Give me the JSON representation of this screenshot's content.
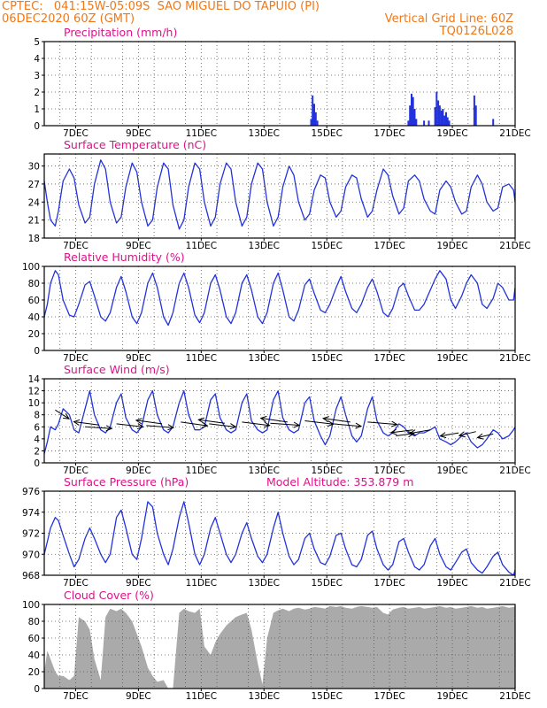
{
  "header": {
    "line1": "CPTEC:   041:15W-05:09S  SAO MIGUEL DO TAPUIO (PI)",
    "line2_left": "06DEC2020 60Z (GMT)",
    "line2_right": "Vertical Grid Line: 60Z",
    "line3_right": "TQ0126L028"
  },
  "model_altitude": "Model Altitude: 353.879 m",
  "colors": {
    "header": "#f07818",
    "title": "#e0108a",
    "series": "#2233dd",
    "cloud": "#aaaaaa",
    "arrow": "#000000"
  },
  "x_ticks": [
    "7DEC",
    "9DEC",
    "11DEC",
    "13DEC",
    "15DEC",
    "17DEC",
    "19DEC",
    "21DEC"
  ],
  "chart_data": [
    {
      "type": "bar",
      "title": "Precipitation (mm/h)",
      "ylim": [
        0,
        5
      ],
      "yticks": [
        "0",
        "1",
        "2",
        "3",
        "4",
        "5"
      ],
      "xlim": [
        6.0,
        21.0
      ],
      "x": [
        14.5,
        14.55,
        14.6,
        14.65,
        14.7,
        17.6,
        17.65,
        17.7,
        17.75,
        17.8,
        17.85,
        18.1,
        18.25,
        18.45,
        18.5,
        18.55,
        18.6,
        18.65,
        18.7,
        18.75,
        18.8,
        18.85,
        18.9,
        19.7,
        19.75,
        20.3
      ],
      "values": [
        0.4,
        1.8,
        1.3,
        0.8,
        0.3,
        0.3,
        1.2,
        1.9,
        1.7,
        1.0,
        0.4,
        0.3,
        0.3,
        1.1,
        2.0,
        1.5,
        1.2,
        0.9,
        1.0,
        0.6,
        0.8,
        0.5,
        0.3,
        1.8,
        1.2,
        0.4
      ]
    },
    {
      "type": "line",
      "title": "Surface Temperature (nC)",
      "ylim": [
        18,
        32
      ],
      "yticks": [
        "18",
        "21",
        "24",
        "27",
        "30"
      ],
      "xlim": [
        6.0,
        21.0
      ],
      "x": [
        6.0,
        6.1,
        6.2,
        6.35,
        6.45,
        6.6,
        6.8,
        6.95,
        7.1,
        7.3,
        7.45,
        7.6,
        7.8,
        7.95,
        8.1,
        8.3,
        8.45,
        8.6,
        8.8,
        8.95,
        9.1,
        9.3,
        9.45,
        9.6,
        9.8,
        9.95,
        10.1,
        10.3,
        10.45,
        10.6,
        10.8,
        10.95,
        11.1,
        11.3,
        11.45,
        11.6,
        11.8,
        11.95,
        12.1,
        12.3,
        12.45,
        12.6,
        12.8,
        12.95,
        13.1,
        13.3,
        13.45,
        13.6,
        13.8,
        13.95,
        14.1,
        14.3,
        14.45,
        14.6,
        14.8,
        14.95,
        15.1,
        15.3,
        15.45,
        15.6,
        15.8,
        15.95,
        16.1,
        16.3,
        16.45,
        16.6,
        16.8,
        16.95,
        17.1,
        17.3,
        17.45,
        17.6,
        17.8,
        17.95,
        18.1,
        18.3,
        18.45,
        18.6,
        18.8,
        18.95,
        19.1,
        19.3,
        19.45,
        19.6,
        19.8,
        19.95,
        20.1,
        20.3,
        20.45,
        20.6,
        20.8,
        20.95,
        21.0
      ],
      "values": [
        27.5,
        24.0,
        21.0,
        20.0,
        22.5,
        27.5,
        29.5,
        28.0,
        23.5,
        20.5,
        21.5,
        27.0,
        31.0,
        29.5,
        24.0,
        20.5,
        21.5,
        26.5,
        30.5,
        29.0,
        24.0,
        20.0,
        21.0,
        26.5,
        30.5,
        29.5,
        23.5,
        19.5,
        21.0,
        26.5,
        30.5,
        29.5,
        24.0,
        20.0,
        21.5,
        27.0,
        30.5,
        29.5,
        24.0,
        20.0,
        21.5,
        27.0,
        30.5,
        29.5,
        24.0,
        20.0,
        21.5,
        26.5,
        30.0,
        28.5,
        24.0,
        21.0,
        22.0,
        26.0,
        28.5,
        28.0,
        24.0,
        21.5,
        22.5,
        26.5,
        28.5,
        28.0,
        24.5,
        21.5,
        22.5,
        26.0,
        29.5,
        28.5,
        25.0,
        22.0,
        23.0,
        27.5,
        28.5,
        27.5,
        24.5,
        22.5,
        22.0,
        26.0,
        27.5,
        26.5,
        24.0,
        22.0,
        22.5,
        26.5,
        28.5,
        27.0,
        24.0,
        22.5,
        23.0,
        26.5,
        27.0,
        26.0,
        24.0
      ]
    },
    {
      "type": "line",
      "title": "Relative Humidity (%)",
      "ylim": [
        0,
        100
      ],
      "yticks": [
        "0",
        "20",
        "40",
        "60",
        "80",
        "100"
      ],
      "xlim": [
        6.0,
        21.0
      ],
      "x": [
        6.0,
        6.1,
        6.2,
        6.35,
        6.45,
        6.6,
        6.8,
        6.95,
        7.1,
        7.3,
        7.45,
        7.6,
        7.8,
        7.95,
        8.1,
        8.3,
        8.45,
        8.6,
        8.8,
        8.95,
        9.1,
        9.3,
        9.45,
        9.6,
        9.8,
        9.95,
        10.1,
        10.3,
        10.45,
        10.6,
        10.8,
        10.95,
        11.1,
        11.3,
        11.45,
        11.6,
        11.8,
        11.95,
        12.1,
        12.3,
        12.45,
        12.6,
        12.8,
        12.95,
        13.1,
        13.3,
        13.45,
        13.6,
        13.8,
        13.95,
        14.1,
        14.3,
        14.45,
        14.6,
        14.8,
        14.95,
        15.1,
        15.3,
        15.45,
        15.6,
        15.8,
        15.95,
        16.1,
        16.3,
        16.45,
        16.6,
        16.8,
        16.95,
        17.1,
        17.3,
        17.45,
        17.6,
        17.8,
        17.95,
        18.1,
        18.3,
        18.45,
        18.6,
        18.8,
        18.95,
        19.1,
        19.3,
        19.45,
        19.6,
        19.8,
        19.95,
        20.1,
        20.3,
        20.45,
        20.6,
        20.8,
        20.95,
        21.0
      ],
      "values": [
        40,
        55,
        80,
        95,
        90,
        60,
        42,
        40,
        55,
        78,
        82,
        65,
        40,
        35,
        45,
        75,
        88,
        70,
        40,
        32,
        45,
        80,
        92,
        75,
        40,
        30,
        45,
        80,
        92,
        75,
        42,
        33,
        45,
        80,
        90,
        72,
        40,
        32,
        45,
        80,
        90,
        72,
        40,
        32,
        45,
        80,
        92,
        72,
        40,
        35,
        48,
        78,
        85,
        68,
        48,
        45,
        55,
        75,
        88,
        70,
        50,
        45,
        55,
        75,
        85,
        70,
        45,
        40,
        50,
        75,
        80,
        65,
        48,
        48,
        55,
        72,
        85,
        95,
        85,
        60,
        50,
        65,
        80,
        90,
        80,
        55,
        50,
        62,
        80,
        75,
        60,
        60,
        75
      ]
    },
    {
      "type": "line",
      "title": "Surface Wind (m/s)",
      "ylim": [
        0,
        14
      ],
      "yticks": [
        "0",
        "2",
        "4",
        "6",
        "8",
        "10",
        "12",
        "14"
      ],
      "xlim": [
        6.0,
        21.0
      ],
      "x": [
        6.0,
        6.1,
        6.2,
        6.35,
        6.45,
        6.6,
        6.8,
        6.95,
        7.1,
        7.3,
        7.45,
        7.6,
        7.8,
        7.95,
        8.1,
        8.3,
        8.45,
        8.6,
        8.8,
        8.95,
        9.1,
        9.3,
        9.45,
        9.6,
        9.8,
        9.95,
        10.1,
        10.3,
        10.45,
        10.6,
        10.8,
        10.95,
        11.1,
        11.3,
        11.45,
        11.6,
        11.8,
        11.95,
        12.1,
        12.3,
        12.45,
        12.6,
        12.8,
        12.95,
        13.1,
        13.3,
        13.45,
        13.6,
        13.8,
        13.95,
        14.1,
        14.3,
        14.45,
        14.6,
        14.8,
        14.95,
        15.1,
        15.3,
        15.45,
        15.6,
        15.8,
        15.95,
        16.1,
        16.3,
        16.45,
        16.6,
        16.8,
        16.95,
        17.1,
        17.3,
        17.45,
        17.6,
        17.8,
        17.95,
        18.1,
        18.3,
        18.45,
        18.6,
        18.8,
        18.95,
        19.1,
        19.3,
        19.45,
        19.6,
        19.8,
        19.95,
        20.1,
        20.3,
        20.45,
        20.6,
        20.8,
        20.95,
        21.0
      ],
      "values": [
        1.5,
        3.5,
        6.0,
        5.5,
        6.5,
        9.0,
        8.0,
        5.5,
        5.0,
        9.0,
        12.0,
        8.0,
        5.5,
        5.0,
        6.0,
        10.0,
        11.5,
        7.5,
        5.5,
        5.0,
        6.0,
        10.5,
        12.0,
        8.0,
        5.5,
        5.0,
        6.0,
        10.0,
        12.0,
        8.0,
        5.5,
        5.5,
        6.0,
        10.5,
        11.5,
        7.5,
        5.5,
        5.0,
        5.5,
        10.0,
        11.5,
        7.0,
        5.5,
        5.0,
        5.5,
        10.5,
        12.0,
        7.5,
        5.5,
        5.0,
        5.5,
        10.0,
        11.0,
        7.0,
        4.5,
        3.0,
        4.5,
        9.0,
        11.0,
        8.0,
        4.5,
        3.5,
        4.5,
        9.0,
        11.0,
        7.0,
        5.0,
        4.5,
        5.0,
        6.5,
        6.0,
        5.0,
        4.5,
        5.0,
        5.0,
        5.5,
        6.0,
        4.0,
        3.5,
        3.0,
        3.5,
        4.5,
        5.0,
        3.5,
        2.5,
        3.0,
        4.0,
        5.5,
        5.0,
        4.0,
        4.5,
        5.5,
        6.0
      ],
      "wind_arrows": {
        "x": [
          6.35,
          7.3,
          7.75,
          8.3,
          9.25,
          9.75,
          10.35,
          11.25,
          11.75,
          12.3,
          13.2,
          13.75,
          14.3,
          15.2,
          15.75,
          16.3,
          17.2,
          17.75,
          18.3,
          19.2,
          19.75,
          20.3
        ],
        "speed": [
          8.8,
          6.0,
          6.3,
          6.5,
          6.2,
          6.5,
          6.8,
          6.5,
          6.6,
          6.8,
          6.6,
          6.8,
          7.0,
          6.5,
          6.8,
          6.8,
          4.5,
          5.5,
          5.5,
          5.0,
          5.2,
          4.8
        ],
        "u_ms": [
          3.0,
          5.8,
          -5.5,
          5.8,
          5.9,
          -5.6,
          5.8,
          5.8,
          -5.7,
          6.0,
          6.3,
          -5.8,
          6.2,
          6.1,
          -5.9,
          6.4,
          3.9,
          -4.8,
          -4.4,
          -4.0,
          -3.6,
          -3.4
        ],
        "v_ms": [
          -8.3,
          -1.6,
          3.1,
          -2.9,
          -1.9,
          3.3,
          -3.5,
          -2.9,
          3.3,
          -3.2,
          -1.9,
          3.6,
          -3.2,
          -2.3,
          3.4,
          -2.3,
          2.2,
          -2.7,
          -3.3,
          -3.0,
          -3.7,
          -3.4
        ]
      }
    },
    {
      "type": "line",
      "title": "Surface Pressure (hPa)",
      "ylim": [
        968,
        976
      ],
      "yticks": [
        "968",
        "970",
        "972",
        "974",
        "976"
      ],
      "xlim": [
        6.0,
        21.0
      ],
      "x": [
        6.0,
        6.1,
        6.2,
        6.35,
        6.45,
        6.6,
        6.8,
        6.95,
        7.1,
        7.3,
        7.45,
        7.6,
        7.8,
        7.95,
        8.1,
        8.3,
        8.45,
        8.6,
        8.8,
        8.95,
        9.1,
        9.3,
        9.45,
        9.6,
        9.8,
        9.95,
        10.1,
        10.3,
        10.45,
        10.6,
        10.8,
        10.95,
        11.1,
        11.3,
        11.45,
        11.6,
        11.8,
        11.95,
        12.1,
        12.3,
        12.45,
        12.6,
        12.8,
        12.95,
        13.1,
        13.3,
        13.45,
        13.6,
        13.8,
        13.95,
        14.1,
        14.3,
        14.45,
        14.6,
        14.8,
        14.95,
        15.1,
        15.3,
        15.45,
        15.6,
        15.8,
        15.95,
        16.1,
        16.3,
        16.45,
        16.6,
        16.8,
        16.95,
        17.1,
        17.3,
        17.45,
        17.6,
        17.8,
        17.95,
        18.1,
        18.3,
        18.45,
        18.6,
        18.8,
        18.95,
        19.1,
        19.3,
        19.45,
        19.6,
        19.8,
        19.95,
        20.1,
        20.3,
        20.45,
        20.6,
        20.8,
        20.95,
        21.0
      ],
      "values": [
        970.0,
        971.2,
        972.5,
        973.5,
        973.2,
        971.8,
        970.0,
        968.8,
        969.5,
        971.5,
        972.5,
        971.5,
        970.0,
        969.2,
        970.0,
        973.5,
        974.2,
        972.5,
        970.0,
        969.5,
        971.5,
        975.0,
        974.5,
        972.0,
        970.0,
        969.0,
        970.5,
        973.5,
        975.0,
        973.0,
        970.0,
        969.0,
        970.0,
        972.5,
        973.5,
        972.0,
        970.0,
        969.2,
        970.0,
        972.0,
        973.0,
        971.5,
        969.8,
        969.2,
        970.0,
        972.5,
        974.0,
        972.0,
        969.8,
        969.0,
        969.5,
        971.5,
        972.0,
        970.5,
        969.2,
        969.0,
        969.8,
        971.8,
        972.0,
        970.5,
        969.0,
        968.8,
        969.5,
        971.8,
        972.2,
        970.5,
        969.0,
        968.5,
        969.0,
        971.2,
        971.5,
        970.2,
        968.8,
        968.5,
        969.0,
        970.8,
        971.5,
        970.0,
        968.8,
        968.5,
        969.2,
        970.2,
        970.5,
        969.2,
        968.5,
        968.2,
        968.8,
        969.8,
        970.2,
        969.0,
        968.3,
        968.0,
        968.5
      ]
    },
    {
      "type": "area",
      "title": "Cloud Cover (%)",
      "ylim": [
        0,
        100
      ],
      "yticks": [
        "0",
        "20",
        "40",
        "60",
        "80",
        "100"
      ],
      "xlim": [
        6.0,
        21.0
      ],
      "x": [
        6.0,
        6.1,
        6.2,
        6.35,
        6.45,
        6.6,
        6.8,
        6.95,
        7.1,
        7.3,
        7.45,
        7.6,
        7.8,
        7.95,
        8.1,
        8.3,
        8.45,
        8.6,
        8.8,
        8.95,
        9.1,
        9.3,
        9.45,
        9.6,
        9.8,
        9.95,
        10.1,
        10.3,
        10.45,
        10.6,
        10.8,
        10.95,
        11.1,
        11.3,
        11.45,
        11.6,
        11.8,
        11.95,
        12.1,
        12.3,
        12.45,
        12.6,
        12.8,
        12.95,
        13.1,
        13.3,
        13.45,
        13.6,
        13.8,
        13.95,
        14.1,
        14.3,
        14.45,
        14.6,
        14.8,
        14.95,
        15.1,
        15.3,
        15.45,
        15.6,
        15.8,
        15.95,
        16.1,
        16.3,
        16.45,
        16.6,
        16.8,
        16.95,
        17.1,
        17.3,
        17.45,
        17.6,
        17.8,
        17.95,
        18.1,
        18.3,
        18.45,
        18.6,
        18.8,
        18.95,
        19.1,
        19.3,
        19.45,
        19.6,
        19.8,
        19.95,
        20.1,
        20.3,
        20.45,
        20.6,
        20.8,
        20.95,
        21.0
      ],
      "values": [
        20,
        45,
        35,
        20,
        15,
        15,
        10,
        15,
        85,
        80,
        70,
        35,
        10,
        85,
        95,
        92,
        95,
        90,
        80,
        65,
        50,
        25,
        15,
        8,
        10,
        0,
        0,
        90,
        95,
        92,
        90,
        95,
        50,
        40,
        55,
        65,
        75,
        80,
        85,
        88,
        90,
        70,
        30,
        5,
        60,
        90,
        93,
        95,
        92,
        95,
        96,
        94,
        95,
        97,
        96,
        95,
        98,
        97,
        98,
        96,
        95,
        97,
        98,
        97,
        96,
        97,
        90,
        88,
        94,
        96,
        97,
        95,
        96,
        97,
        95,
        96,
        97,
        98,
        96,
        97,
        95,
        96,
        97,
        98,
        96,
        97,
        95,
        96,
        97,
        98,
        96,
        97,
        98
      ]
    }
  ]
}
